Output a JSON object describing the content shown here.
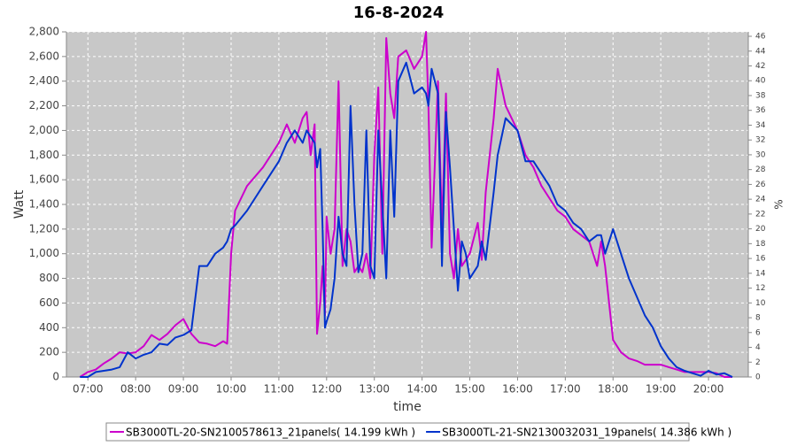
{
  "chart_data": {
    "type": "line",
    "title": "16-8-2024",
    "x_label": "time",
    "y_label": "Watt",
    "y2_label": "%",
    "x": [
      "06:50",
      "07:00",
      "07:10",
      "07:20",
      "07:30",
      "07:40",
      "07:50",
      "08:00",
      "08:10",
      "08:20",
      "08:30",
      "08:40",
      "08:50",
      "09:00",
      "09:10",
      "09:20",
      "09:30",
      "09:40",
      "09:50",
      "09:55",
      "10:00",
      "10:05",
      "10:20",
      "10:40",
      "11:00",
      "11:10",
      "11:20",
      "11:30",
      "11:35",
      "11:40",
      "11:45",
      "11:48",
      "11:52",
      "11:55",
      "11:58",
      "12:00",
      "12:05",
      "12:10",
      "12:15",
      "12:20",
      "12:25",
      "12:30",
      "12:35",
      "12:40",
      "12:45",
      "12:50",
      "12:55",
      "13:00",
      "13:05",
      "13:10",
      "13:15",
      "13:20",
      "13:25",
      "13:30",
      "13:40",
      "13:50",
      "14:00",
      "14:05",
      "14:08",
      "14:12",
      "14:20",
      "14:25",
      "14:30",
      "14:35",
      "14:40",
      "14:45",
      "14:50",
      "14:55",
      "15:00",
      "15:10",
      "15:15",
      "15:20",
      "15:30",
      "15:35",
      "15:45",
      "16:00",
      "16:10",
      "16:20",
      "16:30",
      "16:40",
      "16:50",
      "17:00",
      "17:10",
      "17:20",
      "17:30",
      "17:40",
      "17:45",
      "17:50",
      "18:00",
      "18:10",
      "18:20",
      "18:30",
      "18:40",
      "18:50",
      "19:00",
      "19:10",
      "19:20",
      "19:30",
      "19:40",
      "19:50",
      "20:00",
      "20:10",
      "20:20",
      "20:30"
    ],
    "series": [
      {
        "name": "SB3000TL-20-SN2100578613_21panels( 14.199 kWh )",
        "color": "#cc00cc",
        "values": [
          0,
          40,
          60,
          110,
          150,
          200,
          190,
          200,
          250,
          340,
          300,
          350,
          420,
          470,
          350,
          280,
          270,
          250,
          290,
          270,
          1000,
          1350,
          1550,
          1700,
          1900,
          2050,
          1900,
          2100,
          2150,
          1800,
          2050,
          350,
          600,
          900,
          500,
          1300,
          1000,
          1200,
          2400,
          900,
          1200,
          1100,
          850,
          900,
          850,
          1000,
          800,
          1800,
          2350,
          1000,
          2750,
          2300,
          2100,
          2600,
          2650,
          2500,
          2600,
          2800,
          2200,
          1050,
          2400,
          1200,
          2300,
          1000,
          800,
          1200,
          900,
          950,
          1000,
          1250,
          950,
          1500,
          2100,
          2500,
          2200,
          2000,
          1800,
          1700,
          1550,
          1450,
          1350,
          1300,
          1200,
          1150,
          1100,
          900,
          1100,
          900,
          300,
          200,
          150,
          130,
          100,
          100,
          100,
          80,
          60,
          40,
          40,
          40,
          40,
          30,
          0,
          0
        ]
      },
      {
        "name": "SB3000TL-21-SN2130032031_19panels( 14.386 kWh )",
        "color": "#0033cc",
        "values": [
          0,
          0,
          40,
          50,
          60,
          80,
          200,
          150,
          180,
          200,
          270,
          260,
          320,
          340,
          380,
          900,
          900,
          1000,
          1050,
          1100,
          1200,
          1230,
          1350,
          1550,
          1750,
          1900,
          2000,
          1900,
          2000,
          1950,
          1900,
          1700,
          1850,
          1200,
          400,
          450,
          550,
          800,
          1300,
          1000,
          900,
          2200,
          1400,
          850,
          1000,
          2000,
          900,
          800,
          2000,
          1400,
          800,
          2000,
          1300,
          2400,
          2550,
          2300,
          2350,
          2300,
          2200,
          2500,
          2300,
          900,
          2150,
          1700,
          1200,
          700,
          1100,
          1000,
          800,
          900,
          1100,
          950,
          1500,
          1800,
          2100,
          2000,
          1750,
          1750,
          1650,
          1550,
          1400,
          1350,
          1250,
          1200,
          1100,
          1150,
          1150,
          1000,
          1200,
          1000,
          800,
          650,
          500,
          400,
          250,
          150,
          80,
          50,
          30,
          10,
          50,
          20,
          30,
          0
        ]
      }
    ],
    "xlim": [
      "06:33",
      "20:50"
    ],
    "xticks": [
      "07:00",
      "08:00",
      "09:00",
      "10:00",
      "11:00",
      "12:00",
      "13:00",
      "14:00",
      "15:00",
      "16:00",
      "17:00",
      "18:00",
      "19:00",
      "20:00"
    ],
    "ylim": [
      0,
      2800
    ],
    "yticks": [
      0,
      200,
      400,
      600,
      800,
      {
        "value": 1000,
        "label": "1,000"
      },
      {
        "value": 1200,
        "label": "1,200"
      },
      {
        "value": 1400,
        "label": "1,400"
      },
      {
        "value": 1600,
        "label": "1,600"
      },
      {
        "value": 1800,
        "label": "1,800"
      },
      {
        "value": 2000,
        "label": "2,000"
      },
      {
        "value": 2200,
        "label": "2,200"
      },
      {
        "value": 2400,
        "label": "2,400"
      },
      {
        "value": 2600,
        "label": "2,600"
      },
      {
        "value": 2800,
        "label": "2,800"
      }
    ],
    "y2lim": [
      0,
      46.6
    ],
    "y2ticks": [
      0,
      2,
      4,
      6,
      8,
      10,
      12,
      14,
      16,
      18,
      20,
      22,
      24,
      26,
      28,
      30,
      32,
      34,
      36,
      38,
      40,
      42,
      44,
      46
    ],
    "grid": true,
    "legend": "bottom"
  }
}
